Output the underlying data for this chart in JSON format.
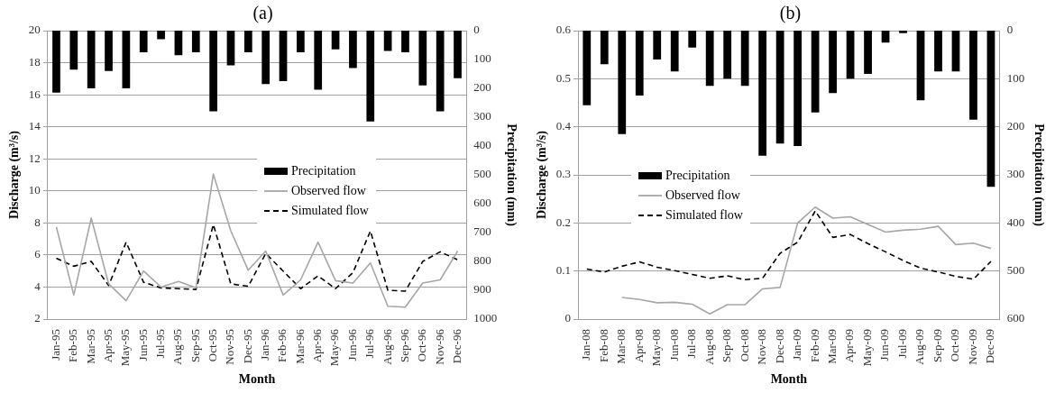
{
  "chart_data": [
    {
      "type": "bar",
      "title": "(a)",
      "xlabel": "Month",
      "ylabel": "Discharge (m³/s)",
      "y2label": "Precipitation (mm)",
      "categories": [
        "Jan-95",
        "Feb-95",
        "Mar-95",
        "Apr-95",
        "May-95",
        "Jun-95",
        "Jul-95",
        "Aug-95",
        "Sep-95",
        "Oct-95",
        "Nov-95",
        "Dec-95",
        "Jan-96",
        "Feb-96",
        "Mar-96",
        "Apr-96",
        "May-96",
        "Jun-96",
        "Jul-96",
        "Aug-96",
        "Sep-96",
        "Oct-96",
        "Nov-96",
        "Dec-96"
      ],
      "series": [
        {
          "name": "Precipitation",
          "axis": "y2",
          "color": "#000000",
          "values": [
            215,
            135,
            200,
            140,
            200,
            75,
            30,
            85,
            75,
            280,
            120,
            75,
            185,
            175,
            75,
            205,
            65,
            130,
            315,
            70,
            75,
            190,
            280,
            165
          ]
        },
        {
          "name": "Observed flow",
          "type": "line",
          "color": "#a6a6a6",
          "line_style": "solid",
          "values": [
            7.75,
            3.5,
            8.3,
            4.2,
            3.15,
            5.0,
            4.0,
            4.35,
            3.95,
            11.05,
            7.5,
            5.05,
            6.25,
            3.5,
            4.45,
            6.8,
            4.4,
            4.25,
            5.5,
            2.8,
            2.75,
            4.25,
            4.45,
            6.25
          ]
        },
        {
          "name": "Simulated flow",
          "type": "line",
          "color": "#000000",
          "line_style": "dashed",
          "values": [
            5.8,
            5.3,
            5.6,
            4.1,
            6.8,
            4.3,
            3.95,
            3.9,
            3.85,
            7.9,
            4.2,
            4.05,
            6.1,
            5.0,
            3.9,
            4.7,
            3.9,
            4.9,
            7.5,
            3.8,
            3.75,
            5.6,
            6.2,
            5.7
          ]
        }
      ],
      "ylim": [
        2,
        20
      ],
      "yticks": [
        2,
        4,
        6,
        8,
        10,
        12,
        14,
        16,
        18,
        20
      ],
      "y2lim": [
        1000,
        0
      ],
      "y2ticks": [
        0,
        100,
        200,
        300,
        400,
        500,
        600,
        700,
        800,
        900,
        1000
      ],
      "grid": "y",
      "legend": "center",
      "marker": "none"
    },
    {
      "type": "bar",
      "title": "(b)",
      "xlabel": "Month",
      "ylabel": "Discharge (m³/s)",
      "y2label": "Precipitation (mm)",
      "categories": [
        "Jan-08",
        "Feb-08",
        "Mar-08",
        "Apr-08",
        "May-08",
        "Jun-08",
        "Jul-08",
        "Aug-08",
        "Sep-08",
        "Oct-08",
        "Nov-08",
        "Dec-08",
        "Jan-09",
        "Feb-09",
        "Mar-09",
        "Apr-09",
        "May-09",
        "Jun-09",
        "Jul-09",
        "Aug-09",
        "Sep-09",
        "Oct-09",
        "Nov-09",
        "Dec-09"
      ],
      "series": [
        {
          "name": "Precipitation",
          "axis": "y2",
          "color": "#000000",
          "values": [
            155,
            70,
            215,
            135,
            60,
            85,
            35,
            115,
            100,
            115,
            260,
            235,
            240,
            170,
            130,
            100,
            90,
            25,
            5,
            145,
            85,
            85,
            185,
            325
          ]
        },
        {
          "name": "Observed flow",
          "type": "line",
          "color": "#a6a6a6",
          "line_style": "solid",
          "values": [
            null,
            null,
            0.045,
            0.041,
            0.034,
            0.035,
            0.031,
            0.011,
            0.03,
            0.03,
            0.063,
            0.066,
            0.2,
            0.233,
            0.21,
            0.213,
            0.197,
            0.181,
            0.185,
            0.187,
            0.193,
            0.155,
            0.158,
            0.147
          ]
        },
        {
          "name": "Simulated flow",
          "type": "line",
          "color": "#000000",
          "line_style": "dashed",
          "values": [
            0.104,
            0.098,
            0.11,
            0.119,
            0.108,
            0.101,
            0.093,
            0.085,
            0.09,
            0.082,
            0.085,
            0.137,
            0.16,
            0.225,
            0.17,
            0.176,
            0.157,
            0.14,
            0.122,
            0.106,
            0.098,
            0.089,
            0.083,
            0.12
          ]
        }
      ],
      "ylim": [
        0,
        0.6
      ],
      "yticks": [
        0,
        0.1,
        0.2,
        0.3,
        0.4,
        0.5,
        0.6
      ],
      "y2lim": [
        600,
        0
      ],
      "y2ticks": [
        0,
        100,
        200,
        300,
        400,
        500,
        600
      ],
      "grid": "y",
      "legend": "left",
      "marker": "none"
    }
  ]
}
